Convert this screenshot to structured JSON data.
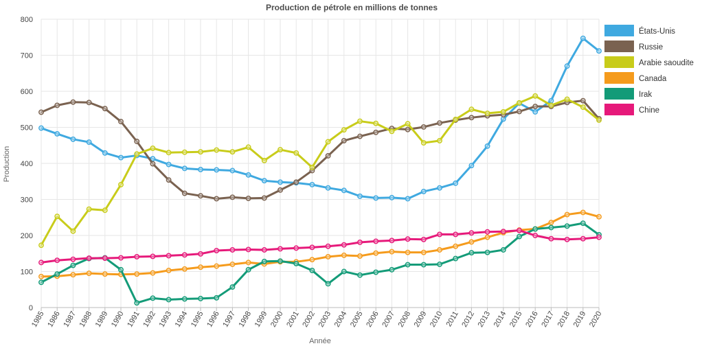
{
  "chart_data": {
    "type": "line",
    "title": "Production de pétrole en millions de tonnes",
    "xlabel": "Année",
    "ylabel": "Production",
    "ylim": [
      0,
      800
    ],
    "yticks": [
      0,
      100,
      200,
      300,
      400,
      500,
      600,
      700,
      800
    ],
    "grid": true,
    "legend_position": "top-right",
    "x": [
      "1985",
      "1986",
      "1987",
      "1988",
      "1989",
      "1990",
      "1991",
      "1992",
      "1993",
      "1994",
      "1995",
      "1996",
      "1997",
      "1998",
      "1999",
      "2000",
      "2001",
      "2002",
      "2003",
      "2004",
      "2005",
      "2006",
      "2007",
      "2008",
      "2009",
      "2010",
      "2011",
      "2012",
      "2013",
      "2014",
      "2015",
      "2016",
      "2017",
      "2018",
      "2019",
      "2020"
    ],
    "series": [
      {
        "name": "États-Unis",
        "color": "#3fa9e0",
        "values": [
          498,
          482,
          467,
          459,
          429,
          416,
          422,
          413,
          397,
          386,
          383,
          382,
          380,
          368,
          352,
          348,
          346,
          341,
          332,
          325,
          309,
          304,
          305,
          302,
          322,
          332,
          345,
          394,
          448,
          523,
          567,
          543,
          574,
          670,
          747,
          712
        ]
      },
      {
        "name": "Russie",
        "color": "#7a6250",
        "values": [
          542,
          561,
          570,
          569,
          552,
          516,
          461,
          399,
          354,
          317,
          310,
          302,
          306,
          303,
          304,
          326,
          348,
          380,
          421,
          463,
          475,
          486,
          497,
          494,
          501,
          512,
          520,
          527,
          532,
          535,
          544,
          558,
          558,
          569,
          574,
          524
        ]
      },
      {
        "name": "Arabie saoudite",
        "color": "#c8cc1a",
        "values": [
          173,
          253,
          212,
          273,
          270,
          341,
          426,
          442,
          430,
          431,
          432,
          437,
          432,
          445,
          408,
          438,
          429,
          389,
          460,
          493,
          517,
          511,
          489,
          510,
          457,
          463,
          522,
          550,
          539,
          543,
          568,
          587,
          561,
          578,
          556,
          520
        ]
      },
      {
        "name": "Canada",
        "color": "#f59b1c",
        "values": [
          86,
          87,
          91,
          95,
          93,
          92,
          93,
          96,
          103,
          107,
          112,
          115,
          120,
          125,
          121,
          127,
          127,
          133,
          141,
          145,
          143,
          151,
          155,
          153,
          153,
          160,
          170,
          182,
          195,
          208,
          215,
          218,
          236,
          258,
          264,
          252
        ]
      },
      {
        "name": "Irak",
        "color": "#139b78",
        "values": [
          70,
          93,
          117,
          136,
          138,
          105,
          13,
          26,
          22,
          24,
          25,
          27,
          57,
          105,
          128,
          129,
          122,
          103,
          66,
          100,
          90,
          98,
          105,
          119,
          119,
          120,
          136,
          152,
          153,
          160,
          197,
          218,
          222,
          226,
          234,
          202
        ]
      },
      {
        "name": "Chine",
        "color": "#e6197a",
        "values": [
          125,
          131,
          134,
          137,
          137,
          138,
          141,
          142,
          144,
          146,
          149,
          158,
          160,
          161,
          160,
          163,
          165,
          167,
          170,
          174,
          181,
          184,
          186,
          190,
          189,
          203,
          203,
          207,
          210,
          211,
          214,
          200,
          191,
          189,
          191,
          195
        ]
      }
    ]
  }
}
